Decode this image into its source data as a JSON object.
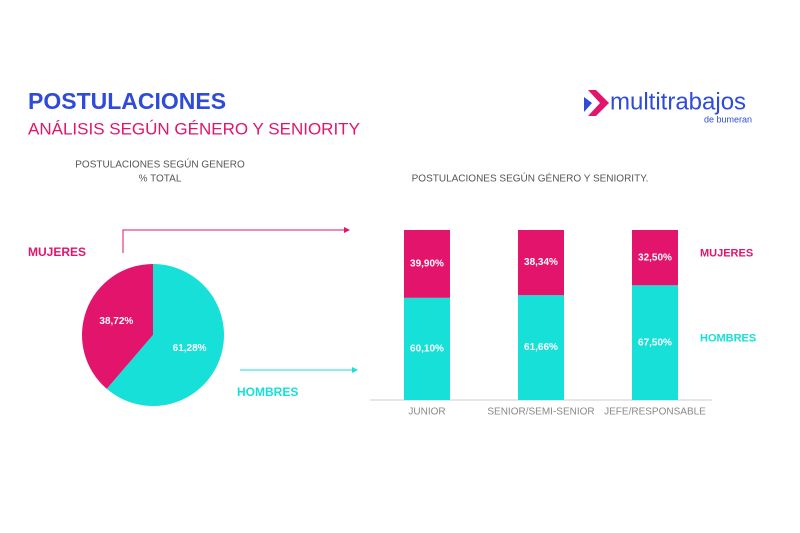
{
  "header": {
    "title": "POSTULACIONES",
    "subtitle": "ANÁLISIS SEGÚN GÉNERO Y SENIORITY",
    "logo": "multitrabajos",
    "logo_tagline": "de bumeran"
  },
  "chart_data": [
    {
      "type": "pie",
      "title": "POSTULACIONES SEGÚN GENERO",
      "subtitle": "% TOTAL",
      "labels": [
        "MUJERES",
        "HOMBRES"
      ],
      "values": [
        38.72,
        61.28
      ],
      "value_labels": [
        "38,72%",
        "61,28%"
      ],
      "colors": [
        "#e2146b",
        "#16e0d8"
      ]
    },
    {
      "type": "stacked_bar",
      "title": "POSTULACIONES SEGÚN GÉNERO Y SENIORITY.",
      "categories": [
        "JUNIOR",
        "SENIOR/SEMI-SENIOR",
        "JEFE/RESPONSABLE"
      ],
      "series": [
        {
          "name": "HOMBRES",
          "color": "#16e0d8",
          "values": [
            60.1,
            61.66,
            67.5
          ],
          "value_labels": [
            "60,10%",
            "61,66%",
            "67,50%"
          ]
        },
        {
          "name": "MUJERES",
          "color": "#e2146b",
          "values": [
            39.9,
            38.34,
            32.5
          ],
          "value_labels": [
            "39,90%",
            "38,34%",
            "32,50%"
          ]
        }
      ]
    }
  ]
}
